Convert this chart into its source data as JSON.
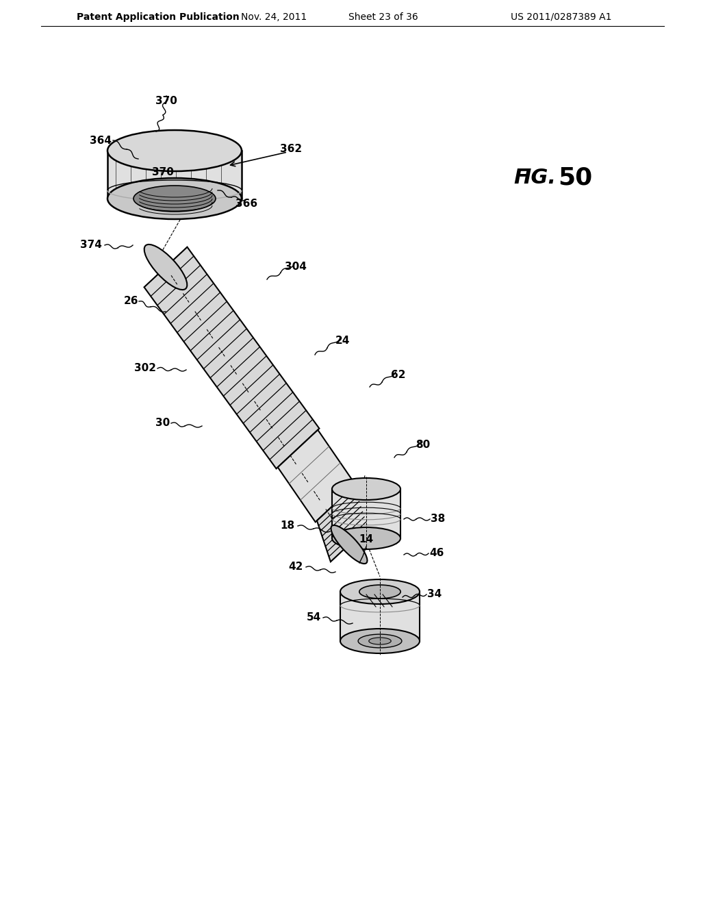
{
  "background": "#ffffff",
  "line_color": "#000000",
  "header_left": "Patent Application Publication",
  "header_date": "Nov. 24, 2011",
  "header_sheet": "Sheet 23 of 36",
  "header_right": "US 2011/0287389 A1",
  "fig_label_italic": "FIG.",
  "fig_label_num": "50"
}
